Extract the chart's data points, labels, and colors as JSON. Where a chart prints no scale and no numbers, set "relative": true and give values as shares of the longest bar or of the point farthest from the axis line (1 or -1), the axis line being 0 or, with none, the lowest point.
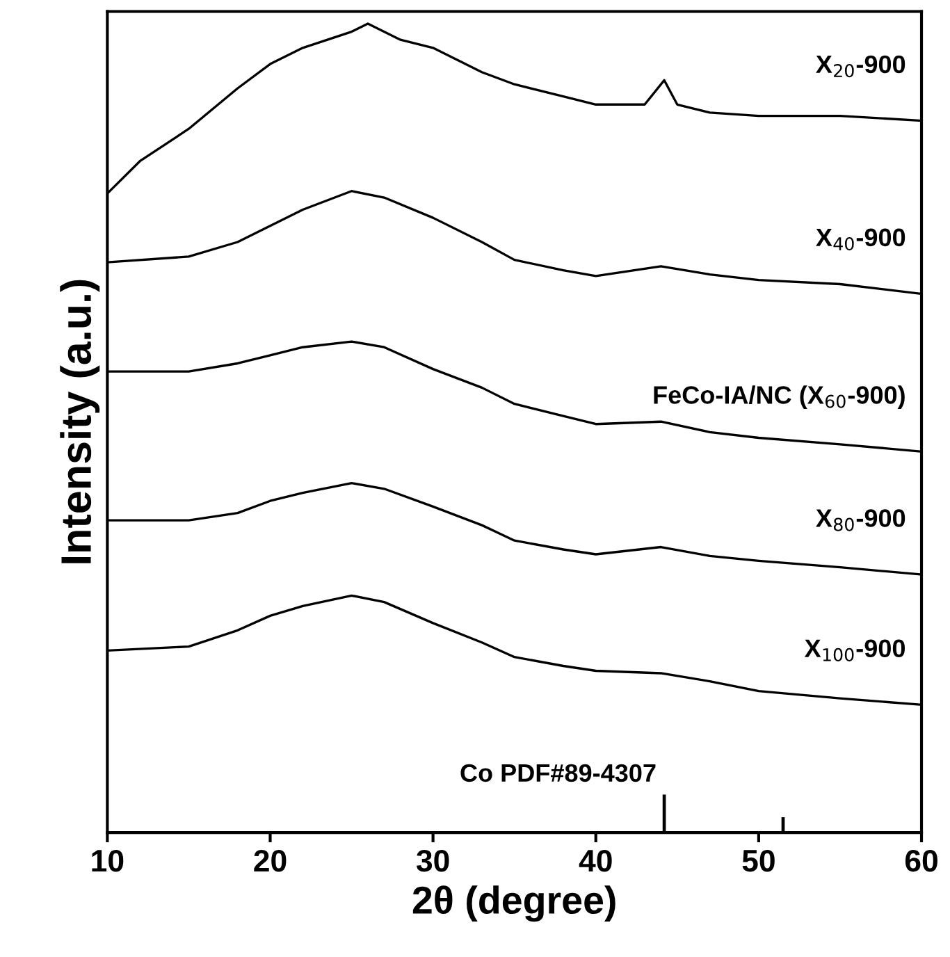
{
  "chart_data": {
    "type": "line",
    "relative": true,
    "xlabel": "2θ (degree)",
    "ylabel": "Intensity (a.u.)",
    "xlim": [
      10,
      60
    ],
    "xticks": [
      10,
      20,
      30,
      40,
      50,
      60
    ],
    "legend": false,
    "grid": false,
    "tick_labels": "x",
    "series": [
      {
        "name": "X$_{20}$-900",
        "color": "#000000",
        "x": [
          10,
          12,
          15,
          18,
          20,
          22,
          25,
          26,
          28,
          30,
          33,
          35,
          38,
          40,
          42,
          43,
          44.2,
          45,
          47,
          50,
          55,
          60
        ],
        "values": [
          0.79,
          0.83,
          0.87,
          0.92,
          0.95,
          0.97,
          0.99,
          1.0,
          0.98,
          0.97,
          0.94,
          0.925,
          0.91,
          0.9,
          0.9,
          0.9,
          0.93,
          0.9,
          0.89,
          0.886,
          0.886,
          0.88
        ]
      },
      {
        "name": "X$_{40}$-900",
        "color": "#000000",
        "x": [
          10,
          15,
          18,
          20,
          22,
          25,
          27,
          30,
          33,
          35,
          38,
          40,
          44,
          47,
          50,
          55,
          60
        ],
        "values": [
          0.705,
          0.712,
          0.73,
          0.75,
          0.77,
          0.793,
          0.785,
          0.76,
          0.73,
          0.708,
          0.695,
          0.688,
          0.7,
          0.69,
          0.683,
          0.678,
          0.666
        ]
      },
      {
        "name": "FeCo-IA/NC (X$_{60}$-900)",
        "color": "#000000",
        "x": [
          10,
          15,
          18,
          20,
          22,
          25,
          27,
          30,
          33,
          35,
          38,
          40,
          44,
          47,
          50,
          55,
          60
        ],
        "values": [
          0.57,
          0.57,
          0.58,
          0.59,
          0.6,
          0.607,
          0.6,
          0.573,
          0.55,
          0.53,
          0.515,
          0.505,
          0.508,
          0.495,
          0.488,
          0.48,
          0.471
        ]
      },
      {
        "name": "X$_{80}$-900",
        "color": "#000000",
        "x": [
          10,
          15,
          18,
          20,
          22,
          25,
          27,
          30,
          33,
          35,
          38,
          40,
          44,
          47,
          50,
          55,
          60
        ],
        "values": [
          0.386,
          0.386,
          0.395,
          0.41,
          0.42,
          0.432,
          0.425,
          0.403,
          0.38,
          0.361,
          0.35,
          0.344,
          0.353,
          0.342,
          0.336,
          0.328,
          0.319
        ]
      },
      {
        "name": "X$_{100}$-900",
        "color": "#000000",
        "x": [
          10,
          15,
          18,
          20,
          22,
          25,
          27,
          30,
          33,
          35,
          38,
          40,
          44,
          47,
          50,
          55,
          60
        ],
        "values": [
          0.225,
          0.23,
          0.25,
          0.268,
          0.28,
          0.293,
          0.285,
          0.259,
          0.235,
          0.217,
          0.206,
          0.2,
          0.197,
          0.187,
          0.175,
          0.166,
          0.158
        ]
      },
      {
        "name": "Co PDF#89-4307",
        "type": "bar",
        "color": "#000000",
        "x": [
          44.2,
          51.5
        ],
        "values": [
          0.047,
          0.019
        ]
      }
    ]
  }
}
